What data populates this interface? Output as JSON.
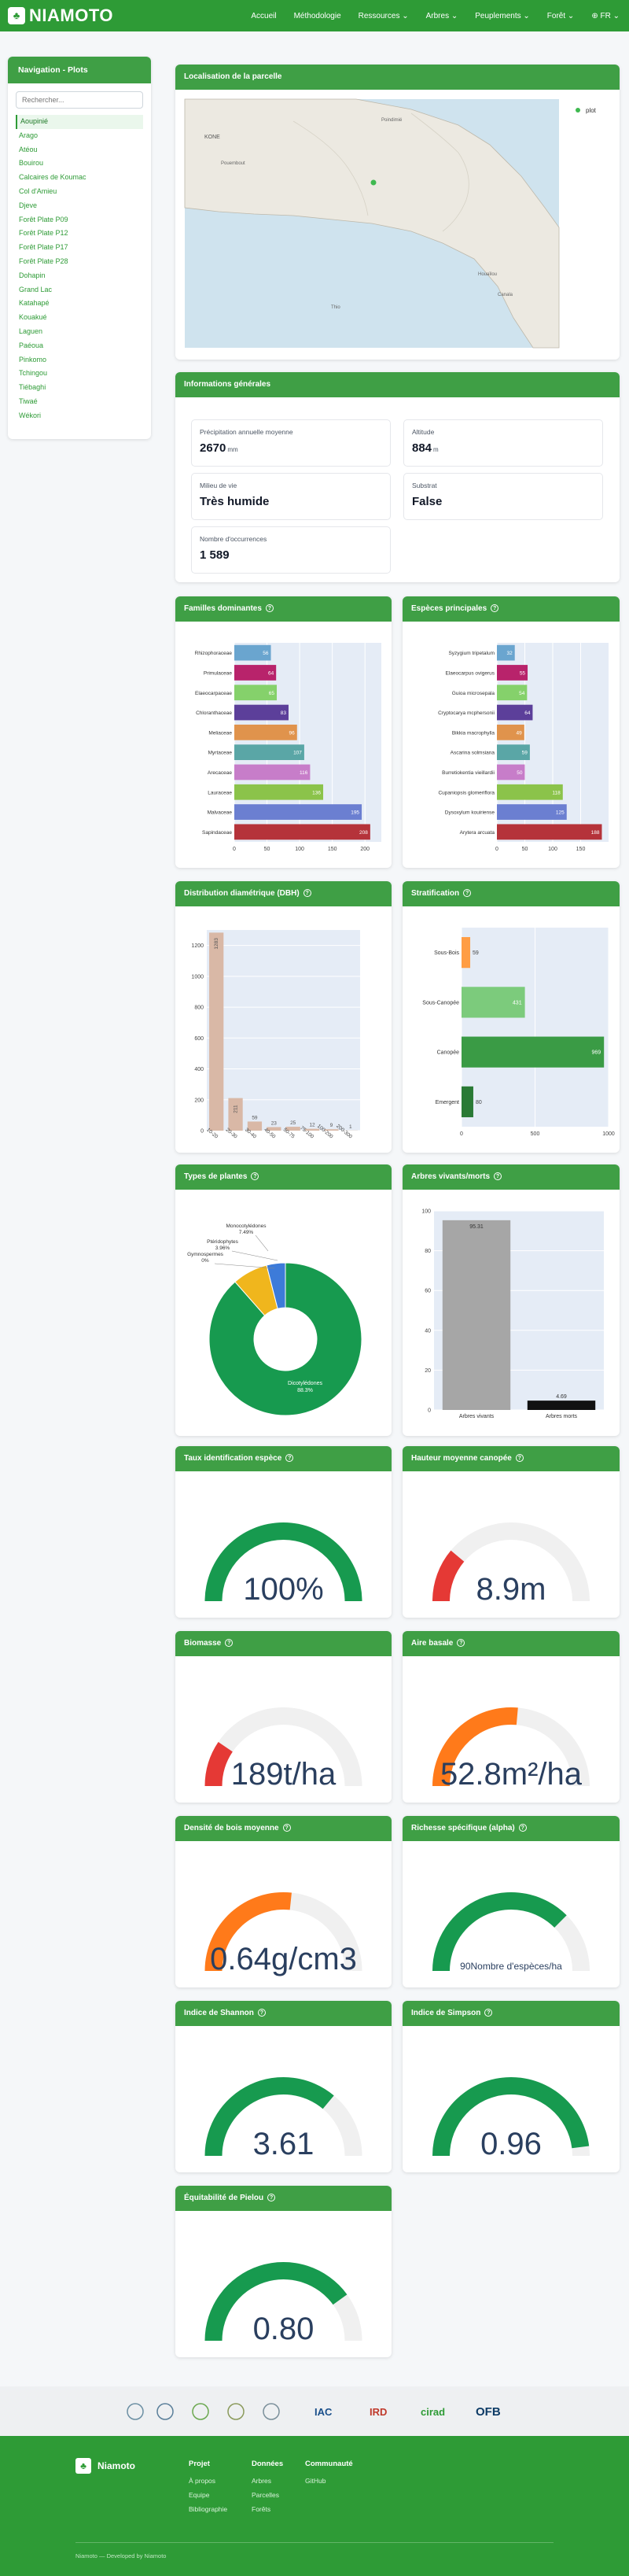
{
  "brand": {
    "name": "NIAMOTO"
  },
  "nav": {
    "accueil": "Accueil",
    "methodologie": "Méthodologie",
    "ressources": "Ressources",
    "arbres": "Arbres",
    "peuplements": "Peuplements",
    "foret": "Forêt",
    "lang": "FR"
  },
  "sidebar": {
    "title": "Navigation - Plots",
    "search_placeholder": "Rechercher...",
    "items": [
      "Aoupinié",
      "Arago",
      "Atéou",
      "Bouirou",
      "Calcaires de Koumac",
      "Col d'Amieu",
      "Djeve",
      "Forêt Plate P09",
      "Forêt Plate P12",
      "Forêt Plate P17",
      "Forêt Plate P28",
      "Dohapin",
      "Grand Lac",
      "Katahapé",
      "Kouakué",
      "Laguen",
      "Paéoua",
      "Pinkomo",
      "Tchingou",
      "Tiébaghi",
      "Tiwaé",
      "Wékori"
    ],
    "active_index": 0
  },
  "map": {
    "title": "Localisation de la parcelle",
    "legend": "plot",
    "labels": {
      "kone": "KONE",
      "pouembout": "Pouembout",
      "poindimie": "Poindimié",
      "houailou": "Houaïlou",
      "thio": "Thio",
      "canala": "Canala"
    }
  },
  "general": {
    "title": "Informations générales",
    "precip_label": "Précipitation annuelle moyenne",
    "precip_value": "2670",
    "precip_unit": "mm",
    "altitude_label": "Altitude",
    "altitude_value": "884",
    "altitude_unit": "m",
    "milieu_label": "Milieu de vie",
    "milieu_value": "Très humide",
    "substrat_label": "Substrat",
    "substrat_value": "False",
    "occ_label": "Nombre d'occurrences",
    "occ_value": "1 589"
  },
  "cards": {
    "familles": "Familles dominantes",
    "especes": "Espèces principales",
    "dbh": "Distribution diamétrique (DBH)",
    "strat": "Stratification",
    "types": "Types de plantes",
    "vivants": "Arbres vivants/morts",
    "taux": "Taux identification espèce",
    "hauteur": "Hauteur moyenne canopée",
    "biomasse": "Biomasse",
    "airebasale": "Aire basale",
    "densite": "Densité de bois moyenne",
    "richesse": "Richesse spécifique (alpha)",
    "shannon": "Indice de Shannon",
    "simpson": "Indice de Simpson",
    "pielou": "Équitabilité de Pielou"
  },
  "chart_data": [
    {
      "type": "bar",
      "orientation": "horizontal",
      "categories": [
        "Sapindaceae",
        "Malvaceae",
        "Lauraceae",
        "Arecaceae",
        "Myrtaceae",
        "Meliaceae",
        "Chloranthaceae",
        "Elaeocarpaceae",
        "Primulaceae",
        "Rhizophoraceae"
      ],
      "values": [
        208,
        195,
        136,
        116,
        107,
        96,
        83,
        65,
        64,
        56
      ],
      "colors": [
        "#b5333a",
        "#6b7fd1",
        "#8bc34a",
        "#c77dc9",
        "#5aa6a6",
        "#e0934c",
        "#5c3f9a",
        "#85d16b",
        "#b8236b",
        "#6aa5cf"
      ],
      "xlim": [
        0,
        225
      ],
      "xticks": [
        0,
        50,
        100,
        150,
        200
      ]
    },
    {
      "type": "bar",
      "orientation": "horizontal",
      "categories": [
        "Arytera arcuata",
        "Dysoxylum kouiriense",
        "Cupaniopsis glomeriflora",
        "Burretiokentia vieillardii",
        "Ascarina solmsiana",
        "Bikkia macrophylla",
        "Cryptocarya mcphersonii",
        "Guioa microsepala",
        "Elaeocarpus ovigerus",
        "Syzygium tripetalum"
      ],
      "labels": [
        "Arytera arcuata",
        "Dysoxylum kouiriense",
        "Cupaniopsis glomeriflora",
        "Burretiokentia vieillardii",
        "Ascarina solmsiana",
        "Bikkia macrophylla",
        "Cryptocarya mcphersonii",
        "Guioa microsepala",
        "Elaeocarpus ovigerus",
        "Syzygium tripetalum"
      ],
      "values": [
        188,
        125,
        118,
        50,
        59,
        49,
        64,
        54,
        55,
        32
      ],
      "colors": [
        "#b5333a",
        "#6b7fd1",
        "#8bc34a",
        "#c77dc9",
        "#5aa6a6",
        "#e0934c",
        "#5c3f9a",
        "#85d16b",
        "#b8236b",
        "#6aa5cf"
      ],
      "xlim": [
        0,
        200
      ],
      "xticks": [
        0,
        50,
        100,
        150
      ]
    },
    {
      "type": "bar",
      "categories": [
        "10-20",
        "20-30",
        "30-40",
        "40-50",
        "50-75",
        "75-100",
        "100-200",
        "200-300"
      ],
      "values": [
        1283,
        211,
        59,
        23,
        25,
        12,
        9,
        1
      ],
      "color": "#d9b8a6",
      "ylim": [
        0,
        1300
      ],
      "yticks": [
        0,
        200,
        400,
        600,
        800,
        1000,
        1200
      ]
    },
    {
      "type": "bar",
      "orientation": "horizontal",
      "categories": [
        "Sous-Bois",
        "Sous-Canopée",
        "Canopée",
        "Emergent"
      ],
      "values": [
        59,
        431,
        969,
        80
      ],
      "colors": [
        "#ff9d44",
        "#7ccb7c",
        "#3a9b45",
        "#2a7a35"
      ],
      "xlim": [
        0,
        1000
      ],
      "xticks": [
        0,
        500,
        1000
      ]
    },
    {
      "type": "pie",
      "labels": [
        "Dicotylédones",
        "Monocotylédones",
        "Ptéridophytes",
        "Gymnospermes"
      ],
      "values": [
        88.3,
        7.49,
        3.96,
        0
      ],
      "label_texts": [
        "Dicotylédones\n88.3%",
        "Monocotylédones\n7.49%",
        "Ptéridophytes\n3.96%",
        "Gymnospermes\n0%"
      ],
      "colors": [
        "#179a4f",
        "#f0b61d",
        "#3d7bd9",
        "#6f42c1"
      ]
    },
    {
      "type": "bar",
      "categories": [
        "Arbres vivants",
        "Arbres morts"
      ],
      "values": [
        95.31,
        4.69
      ],
      "colors": [
        "#a6a6a6",
        "#111111"
      ],
      "ylim": [
        0,
        100
      ],
      "yticks": [
        0,
        20,
        40,
        60,
        80,
        100
      ]
    }
  ],
  "gauges": [
    {
      "key": "taux",
      "value": 100,
      "max": 100,
      "text": "100%",
      "color": "#179a4f",
      "small": false
    },
    {
      "key": "hauteur",
      "value": 8.9,
      "max": 40,
      "text": "8.9m",
      "color": "#e53935",
      "small": false
    },
    {
      "key": "biomasse",
      "value": 189,
      "max": 1000,
      "text": "189t/ha",
      "color": "#e53935",
      "small": false
    },
    {
      "key": "airebasale",
      "value": 52.8,
      "max": 100,
      "text": "52.8m²/ha",
      "color": "#ff7a1a",
      "small": false
    },
    {
      "key": "densite",
      "value": 0.64,
      "max": 1.2,
      "text": "0.64g/cm3",
      "color": "#ff7a1a",
      "small": false
    },
    {
      "key": "richesse",
      "value": 90,
      "max": 120,
      "text": "90Nombre d'espèces/ha",
      "color": "#179a4f",
      "small": true
    },
    {
      "key": "shannon",
      "value": 3.61,
      "max": 5,
      "text": "3.61",
      "color": "#179a4f",
      "small": false
    },
    {
      "key": "simpson",
      "value": 0.96,
      "max": 1,
      "text": "0.96",
      "color": "#179a4f",
      "small": false
    },
    {
      "key": "pielou",
      "value": 0.8,
      "max": 1,
      "text": "0.80",
      "color": "#179a4f",
      "small": false
    }
  ],
  "partners": [
    "IAC",
    "IRD",
    "cirad",
    "OFB"
  ],
  "footer": {
    "brand": "Niamoto",
    "projet_title": "Projet",
    "projet_links": [
      "À propos",
      "Equipe",
      "Bibliographie"
    ],
    "donnees_title": "Données",
    "donnees_links": [
      "Arbres",
      "Parcelles",
      "Forêts"
    ],
    "communaute_title": "Communauté",
    "communaute_links": [
      "GitHub"
    ],
    "copyright": "Niamoto — Developed by Niamoto"
  }
}
